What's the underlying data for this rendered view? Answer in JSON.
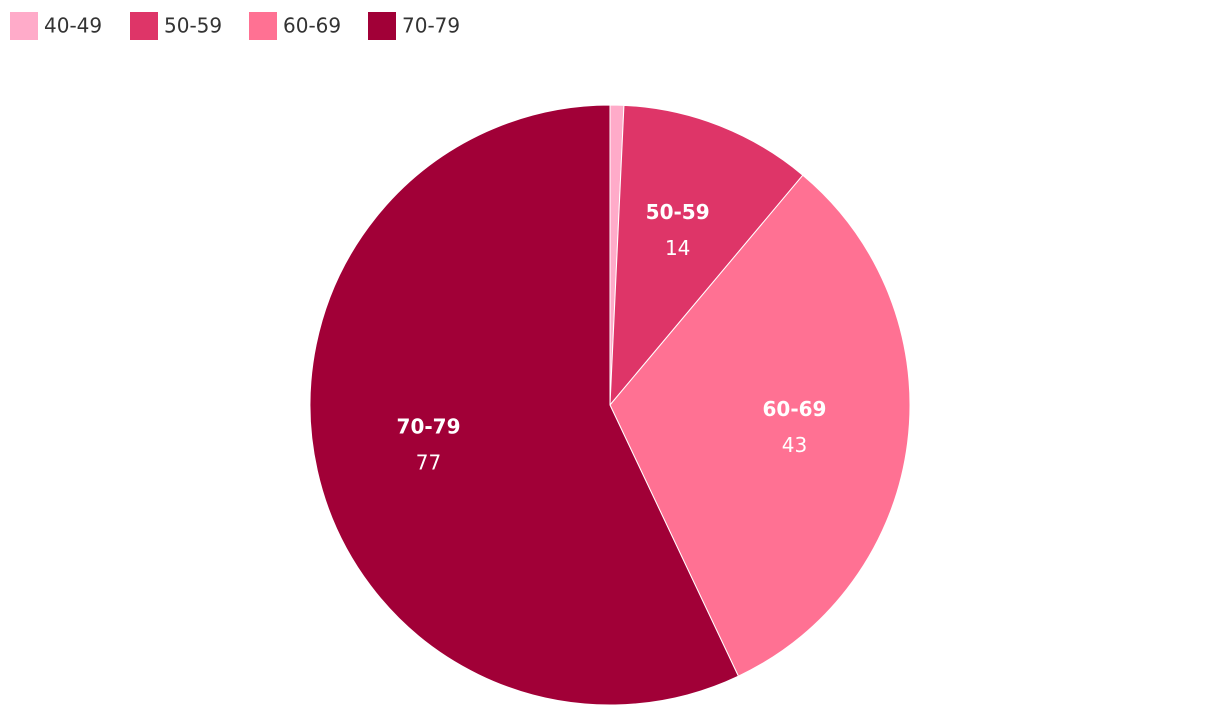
{
  "chart_data": {
    "type": "pie",
    "categories": [
      "40-49",
      "50-59",
      "60-69",
      "70-79"
    ],
    "values": [
      1,
      14,
      43,
      77
    ],
    "colors": [
      "#ffabc9",
      "#de3568",
      "#ff7193",
      "#a10037"
    ],
    "legend": "top-left"
  }
}
